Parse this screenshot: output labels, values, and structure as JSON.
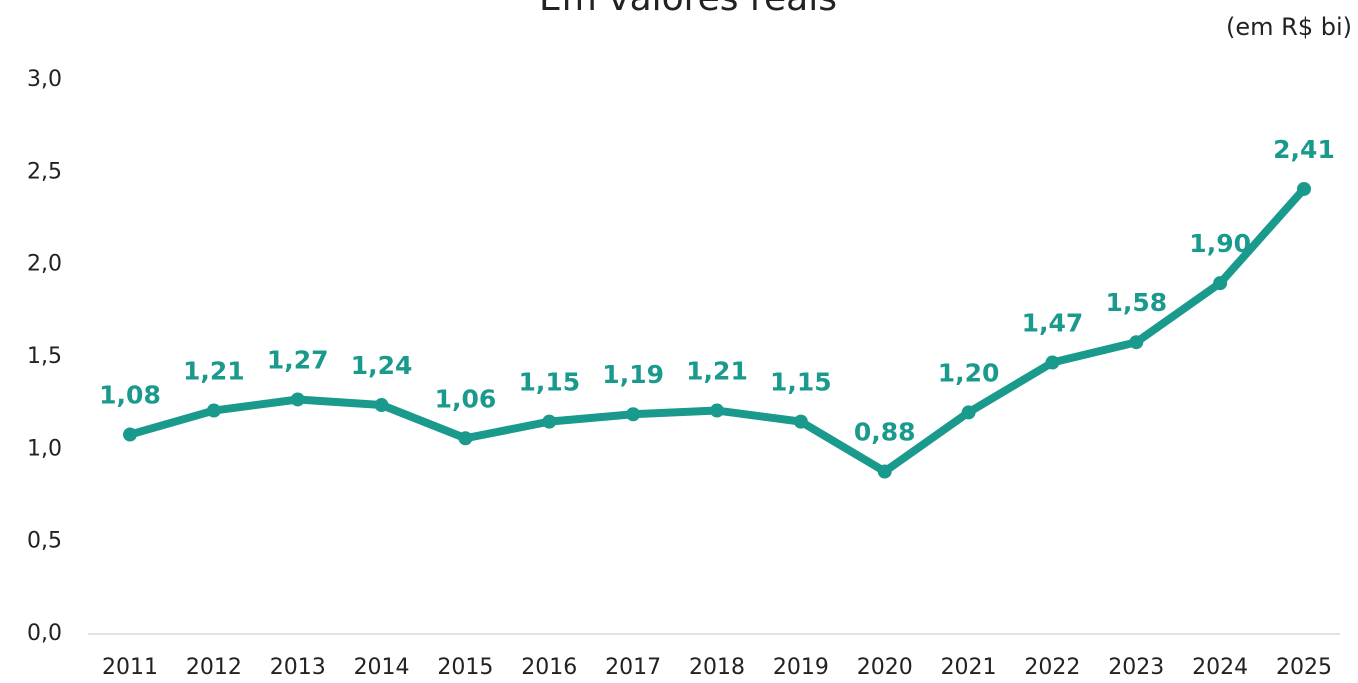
{
  "chart_data": {
    "type": "line",
    "title": "Em valores reais",
    "subtitle": "(em R$ bi)",
    "categories": [
      "2011",
      "2012",
      "2013",
      "2014",
      "2015",
      "2016",
      "2017",
      "2018",
      "2019",
      "2020",
      "2021",
      "2022",
      "2023",
      "2024",
      "2025"
    ],
    "series": [
      {
        "name": "Em valores reais",
        "color": "#1a9a8c",
        "values": [
          1.08,
          1.21,
          1.27,
          1.24,
          1.06,
          1.15,
          1.19,
          1.21,
          1.15,
          0.88,
          1.2,
          1.47,
          1.58,
          1.9,
          2.41
        ],
        "value_labels": [
          "1,08",
          "1,21",
          "1,27",
          "1,24",
          "1,06",
          "1,15",
          "1,19",
          "1,21",
          "1,15",
          "0,88",
          "1,20",
          "1,47",
          "1,58",
          "1,90",
          "2,41"
        ]
      }
    ],
    "ylim": [
      0,
      3
    ],
    "yticks": [
      {
        "value": 0,
        "label": "0,0"
      },
      {
        "value": 0.5,
        "label": "0,5"
      },
      {
        "value": 1,
        "label": "1,0"
      },
      {
        "value": 1.5,
        "label": "1,5"
      },
      {
        "value": 2,
        "label": "2,0"
      },
      {
        "value": 2.5,
        "label": "2,5"
      },
      {
        "value": 3,
        "label": "3,0"
      }
    ],
    "grid": false
  }
}
